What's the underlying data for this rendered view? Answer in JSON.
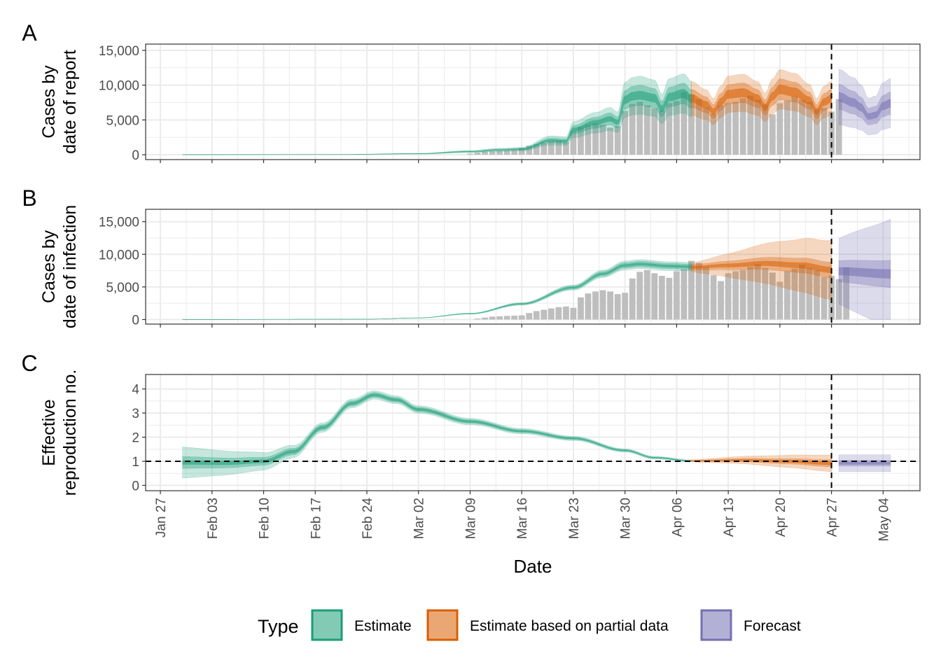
{
  "figure": {
    "xlabel": "Date",
    "x_ticks": [
      "Jan 27",
      "Feb 03",
      "Feb 10",
      "Feb 17",
      "Feb 24",
      "Mar 02",
      "Mar 09",
      "Mar 16",
      "Mar 23",
      "Mar 30",
      "Apr 06",
      "Apr 13",
      "Apr 20",
      "Apr 27",
      "May 04"
    ],
    "legend": {
      "title": "Type",
      "position": "bottom",
      "items": [
        {
          "label": "Estimate",
          "fill": "#1b9e77",
          "stroke": "#1b9e77"
        },
        {
          "label": "Estimate based on partial data",
          "fill": "#d95f02",
          "stroke": "#d95f02"
        },
        {
          "label": "Forecast",
          "fill": "#7570b3",
          "stroke": "#7570b3"
        }
      ]
    },
    "colors": {
      "estimate": "#1b9e77",
      "partial": "#d95f02",
      "forecast": "#7570b3",
      "bars": "#bebebe",
      "panel_border": "#333333",
      "grid": "#ebebeb"
    }
  },
  "chart_data": [
    {
      "type": "area",
      "panel": "A",
      "ylabel_lines": [
        "Cases by",
        "date of report"
      ],
      "yticks": [
        "0",
        "5,000",
        "10,000",
        "15,000"
      ],
      "ylim": [
        -700,
        15900
      ],
      "xlim": [
        "2020-01-25",
        "2020-05-09"
      ],
      "vline_x": "2020-04-27",
      "grid": true,
      "bars": {
        "x_start": "2020-03-09",
        "values": [
          150,
          300,
          450,
          500,
          550,
          600,
          650,
          1000,
          1300,
          1500,
          1700,
          1900,
          2000,
          1800,
          3400,
          4000,
          4300,
          4500,
          4300,
          3900,
          4100,
          6300,
          7300,
          7600,
          7100,
          6700,
          6400,
          7400,
          7700,
          9000,
          8700,
          8000,
          6800,
          5900,
          7100,
          7400,
          7600,
          8100,
          8500,
          7900,
          7200,
          5800,
          7400,
          7800,
          8400,
          7900,
          7600,
          6500,
          6700,
          6200,
          8000
        ]
      },
      "bands": [
        {
          "type": "Estimate",
          "x_start": "2020-01-30",
          "x_end": "2020-04-08",
          "knots": [
            [
              "2020-01-30",
              10
            ],
            [
              "2020-02-20",
              30
            ],
            [
              "2020-03-02",
              150
            ],
            [
              "2020-03-09",
              450
            ],
            [
              "2020-03-13",
              700
            ],
            [
              "2020-03-16",
              800
            ],
            [
              "2020-03-20",
              2050
            ],
            [
              "2020-03-22",
              1950
            ],
            [
              "2020-03-23",
              3600
            ],
            [
              "2020-03-26",
              4600
            ],
            [
              "2020-03-28",
              5150
            ],
            [
              "2020-03-29",
              4650
            ],
            [
              "2020-03-30",
              7900
            ],
            [
              "2020-03-31",
              8400
            ],
            [
              "2020-04-01",
              8550
            ],
            [
              "2020-04-03",
              8150
            ],
            [
              "2020-04-04",
              6600
            ],
            [
              "2020-04-05",
              8300
            ],
            [
              "2020-04-07",
              8800
            ],
            [
              "2020-04-08",
              8000
            ]
          ],
          "spread": [
            0.07,
            0.17,
            0.32
          ]
        },
        {
          "type": "Estimate based on partial data",
          "x_start": "2020-04-08",
          "x_end": "2020-04-27",
          "knots": [
            [
              "2020-04-08",
              8100
            ],
            [
              "2020-04-10",
              7200
            ],
            [
              "2020-04-11",
              6200
            ],
            [
              "2020-04-12",
              7600
            ],
            [
              "2020-04-13",
              8700
            ],
            [
              "2020-04-15",
              8900
            ],
            [
              "2020-04-17",
              8100
            ],
            [
              "2020-04-18",
              6800
            ],
            [
              "2020-04-19",
              8400
            ],
            [
              "2020-04-20",
              9400
            ],
            [
              "2020-04-22",
              9000
            ],
            [
              "2020-04-24",
              7800
            ],
            [
              "2020-04-25",
              6200
            ],
            [
              "2020-04-26",
              7600
            ],
            [
              "2020-04-27",
              8100
            ]
          ],
          "spread": [
            0.07,
            0.16,
            0.3
          ]
        },
        {
          "type": "Forecast",
          "x_start": "2020-04-28",
          "x_end": "2020-05-05",
          "knots": [
            [
              "2020-04-28",
              8300
            ],
            [
              "2020-04-30",
              7500
            ],
            [
              "2020-05-01",
              6800
            ],
            [
              "2020-05-02",
              5500
            ],
            [
              "2020-05-03",
              5700
            ],
            [
              "2020-05-04",
              7000
            ],
            [
              "2020-05-05",
              7400
            ]
          ],
          "spread": [
            0.08,
            0.22,
            0.48
          ]
        }
      ]
    },
    {
      "type": "area",
      "panel": "B",
      "ylabel_lines": [
        "Cases by",
        "date of infection"
      ],
      "yticks": [
        "0",
        "5,000",
        "10,000",
        "15,000"
      ],
      "ylim": [
        -700,
        16900
      ],
      "xlim": [
        "2020-01-25",
        "2020-05-09"
      ],
      "vline_x": "2020-04-27",
      "grid": true,
      "bars": {
        "x_start": "2020-03-10",
        "values": [
          150,
          300,
          450,
          500,
          550,
          600,
          650,
          1000,
          1300,
          1500,
          1700,
          1900,
          2000,
          1800,
          3400,
          4000,
          4300,
          4500,
          4300,
          3900,
          4100,
          6300,
          7300,
          7600,
          7100,
          6700,
          6400,
          7400,
          7700,
          9000,
          8700,
          8000,
          6800,
          5900,
          7100,
          7400,
          7600,
          8100,
          8500,
          7900,
          7200,
          5800,
          7400,
          7800,
          8400,
          7900,
          7600,
          6500,
          6700,
          6200,
          8000
        ]
      },
      "bands": [
        {
          "type": "Estimate",
          "x_start": "2020-01-30",
          "x_end": "2020-04-08",
          "knots": [
            [
              "2020-01-30",
              5
            ],
            [
              "2020-02-24",
              50
            ],
            [
              "2020-03-02",
              250
            ],
            [
              "2020-03-09",
              900
            ],
            [
              "2020-03-16",
              2400
            ],
            [
              "2020-03-23",
              4900
            ],
            [
              "2020-03-27",
              7000
            ],
            [
              "2020-03-30",
              8300
            ],
            [
              "2020-04-01",
              8500
            ],
            [
              "2020-04-05",
              8200
            ],
            [
              "2020-04-08",
              8100
            ]
          ],
          "spread": [
            0.02,
            0.05,
            0.08
          ]
        },
        {
          "type": "Estimate based on partial data",
          "x_start": "2020-04-08",
          "x_end": "2020-04-27",
          "knots": [
            [
              "2020-04-08",
              8000
            ],
            [
              "2020-04-13",
              8300
            ],
            [
              "2020-04-18",
              8600
            ],
            [
              "2020-04-23",
              8300
            ],
            [
              "2020-04-27",
              7600
            ]
          ],
          "spread_start": [
            0.02,
            0.05,
            0.08
          ],
          "spread_end": [
            0.06,
            0.16,
            0.6
          ]
        },
        {
          "type": "Forecast",
          "x_start": "2020-04-28",
          "x_end": "2020-05-05",
          "knots": [
            [
              "2020-04-28",
              7400
            ],
            [
              "2020-05-05",
              7000
            ]
          ],
          "spread_start": [
            0.08,
            0.22,
            0.68
          ],
          "spread_end": [
            0.1,
            0.3,
            1.2
          ]
        }
      ]
    },
    {
      "type": "area",
      "panel": "C",
      "ylabel_lines": [
        "Effective",
        "reproduction no."
      ],
      "yticks": [
        "0",
        "1",
        "2",
        "3",
        "4"
      ],
      "ylim": [
        -0.22,
        4.6
      ],
      "xlim": [
        "2020-01-25",
        "2020-05-09"
      ],
      "vline_x": "2020-04-27",
      "hline_y": 1,
      "grid": true,
      "bands": [
        {
          "type": "Estimate",
          "x_start": "2020-01-30",
          "x_end": "2020-04-08",
          "knots": [
            [
              "2020-01-30",
              0.95
            ],
            [
              "2020-02-05",
              0.93
            ],
            [
              "2020-02-10",
              1.0
            ],
            [
              "2020-02-14",
              1.4
            ],
            [
              "2020-02-18",
              2.4
            ],
            [
              "2020-02-22",
              3.4
            ],
            [
              "2020-02-25",
              3.75
            ],
            [
              "2020-02-28",
              3.55
            ],
            [
              "2020-03-02",
              3.15
            ],
            [
              "2020-03-09",
              2.65
            ],
            [
              "2020-03-16",
              2.25
            ],
            [
              "2020-03-23",
              1.95
            ],
            [
              "2020-03-30",
              1.45
            ],
            [
              "2020-04-03",
              1.15
            ],
            [
              "2020-04-08",
              1.02
            ]
          ],
          "abs_start": [
            0.08,
            0.25,
            0.65
          ],
          "abs_mid": [
            0.06,
            0.12,
            0.2
          ],
          "abs_end": [
            0.01,
            0.02,
            0.04
          ]
        },
        {
          "type": "Estimate based on partial data",
          "x_start": "2020-04-08",
          "x_end": "2020-04-27",
          "knots": [
            [
              "2020-04-08",
              1.02
            ],
            [
              "2020-04-15",
              1.05
            ],
            [
              "2020-04-21",
              1.0
            ],
            [
              "2020-04-27",
              0.92
            ]
          ],
          "abs_start": [
            0.01,
            0.02,
            0.04
          ],
          "abs_end": [
            0.07,
            0.15,
            0.35
          ]
        },
        {
          "type": "Forecast",
          "x_start": "2020-04-28",
          "x_end": "2020-05-05",
          "knots": [
            [
              "2020-04-28",
              0.92
            ],
            [
              "2020-05-05",
              0.92
            ]
          ],
          "abs_start": [
            0.05,
            0.12,
            0.35
          ],
          "abs_end": [
            0.05,
            0.12,
            0.35
          ]
        }
      ]
    }
  ],
  "panel_labels": [
    "A",
    "B",
    "C"
  ]
}
